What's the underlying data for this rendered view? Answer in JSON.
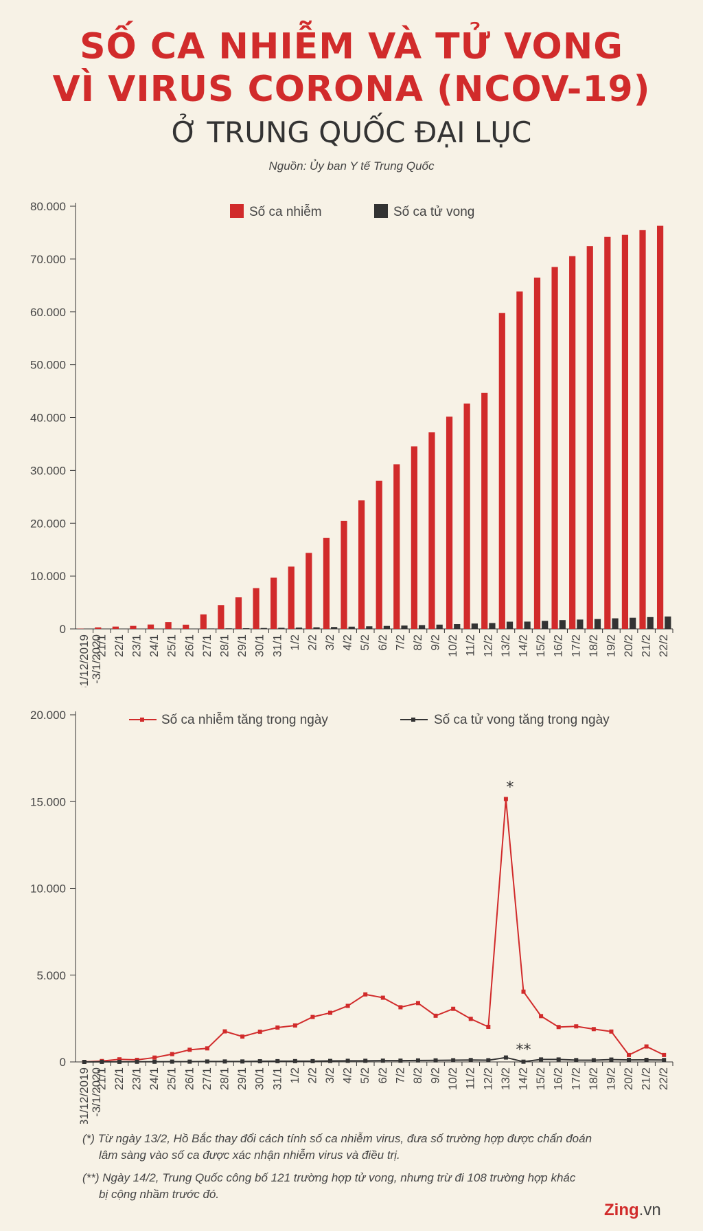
{
  "title_line1": "SỐ CA NHIỄM VÀ TỬ VONG",
  "title_line2": "VÌ VIRUS CORONA (NCOV-19)",
  "subtitle": "Ở TRUNG QUỐC ĐẠI LỤC",
  "source": "Nguồn: Ủy ban Y tế Trung Quốc",
  "chart_data": [
    {
      "type": "bar",
      "categories": [
        "31/12/2019 -3/1/2020",
        "21/1",
        "22/1",
        "23/1",
        "24/1",
        "25/1",
        "26/1",
        "27/1",
        "28/1",
        "29/1",
        "30/1",
        "31/1",
        "1/2",
        "2/2",
        "3/2",
        "4/2",
        "5/2",
        "6/2",
        "7/2",
        "8/2",
        "9/2",
        "10/2",
        "11/2",
        "12/2",
        "13/2",
        "14/2",
        "15/2",
        "16/2",
        "17/2",
        "18/2",
        "19/2",
        "20/2",
        "21/2",
        "22/2"
      ],
      "series": [
        {
          "name": "Số ca nhiễm",
          "color": "#d12b2b",
          "values": [
            44,
            291,
            440,
            571,
            830,
            1287,
            800,
            2744,
            4515,
            5974,
            7711,
            9692,
            11791,
            14380,
            17205,
            20438,
            24324,
            28018,
            31161,
            34546,
            37198,
            40171,
            42638,
            44653,
            59804,
            63851,
            66492,
            68500,
            70548,
            72436,
            74185,
            74576,
            75465,
            76288
          ]
        },
        {
          "name": "Số ca tử vong",
          "color": "#333333",
          "values": [
            0,
            6,
            9,
            17,
            25,
            41,
            56,
            80,
            106,
            132,
            170,
            213,
            259,
            304,
            361,
            425,
            490,
            563,
            636,
            722,
            811,
            908,
            1016,
            1113,
            1367,
            1380,
            1523,
            1665,
            1770,
            1868,
            2004,
            2118,
            2236,
            2345
          ]
        }
      ],
      "y_ticks": [
        "80.000",
        "70.000",
        "60.000",
        "50.000",
        "40.000",
        "30.000",
        "20.000",
        "10.000",
        "0"
      ],
      "ylim": [
        0,
        80000
      ],
      "legend": [
        "Số ca nhiễm",
        "Số ca tử vong"
      ],
      "legend_position": "top"
    },
    {
      "type": "line",
      "categories": [
        "31/12/2019 -3/1/2020",
        "21/1",
        "22/1",
        "23/1",
        "24/1",
        "25/1",
        "26/1",
        "27/1",
        "28/1",
        "29/1",
        "30/1",
        "31/1",
        "1/2",
        "2/2",
        "3/2",
        "4/2",
        "5/2",
        "6/2",
        "7/2",
        "8/2",
        "9/2",
        "10/2",
        "11/2",
        "12/2",
        "13/2",
        "14/2",
        "15/2",
        "16/2",
        "17/2",
        "18/2",
        "19/2",
        "20/2",
        "21/2",
        "22/2"
      ],
      "series": [
        {
          "name": "Số ca nhiễm tăng trong ngày",
          "color": "#d12b2b",
          "values": [
            0,
            50,
            150,
            120,
            250,
            450,
            700,
            780,
            1760,
            1460,
            1740,
            1980,
            2100,
            2590,
            2830,
            3230,
            3890,
            3700,
            3150,
            3390,
            2660,
            3060,
            2480,
            2020,
            15150,
            4050,
            2640,
            2010,
            2050,
            1890,
            1750,
            400,
            890,
            400
          ]
        },
        {
          "name": "Số ca tử vong tăng trong ngày",
          "color": "#333333",
          "values": [
            0,
            3,
            3,
            8,
            8,
            16,
            15,
            24,
            26,
            26,
            38,
            43,
            46,
            45,
            57,
            64,
            65,
            73,
            73,
            86,
            89,
            97,
            108,
            97,
            254,
            13,
            143,
            142,
            105,
            98,
            136,
            114,
            118,
            109
          ]
        }
      ],
      "y_ticks": [
        "20.000",
        "15.000",
        "10.000",
        "5.000",
        "0"
      ],
      "ylim": [
        0,
        20000
      ],
      "legend": [
        "Số ca nhiễm tăng trong ngày",
        "Số ca tử vong tăng trong ngày"
      ],
      "legend_position": "top",
      "annotations": [
        {
          "text": "*",
          "category": "13/2",
          "series": "Số ca nhiễm tăng trong ngày"
        },
        {
          "text": "**",
          "category": "14/2",
          "series": "Số ca tử vong tăng trong ngày"
        }
      ]
    }
  ],
  "notes": {
    "n1_line1": "(*) Từ ngày 13/2, Hồ Bắc thay đổi cách tính số ca nhiễm virus, đưa số trường hợp được chẩn đoán",
    "n1_line2": "lâm sàng vào số ca được xác nhận nhiễm virus và điều trị.",
    "n2_line1": "(**) Ngày 14/2, Trung Quốc công bố 121 trường hợp tử vong, nhưng trừ đi 108 trường hợp khác",
    "n2_line2": "bị cộng nhầm trước đó."
  },
  "logo": {
    "brand": "Zing",
    "suffix": ".vn"
  }
}
